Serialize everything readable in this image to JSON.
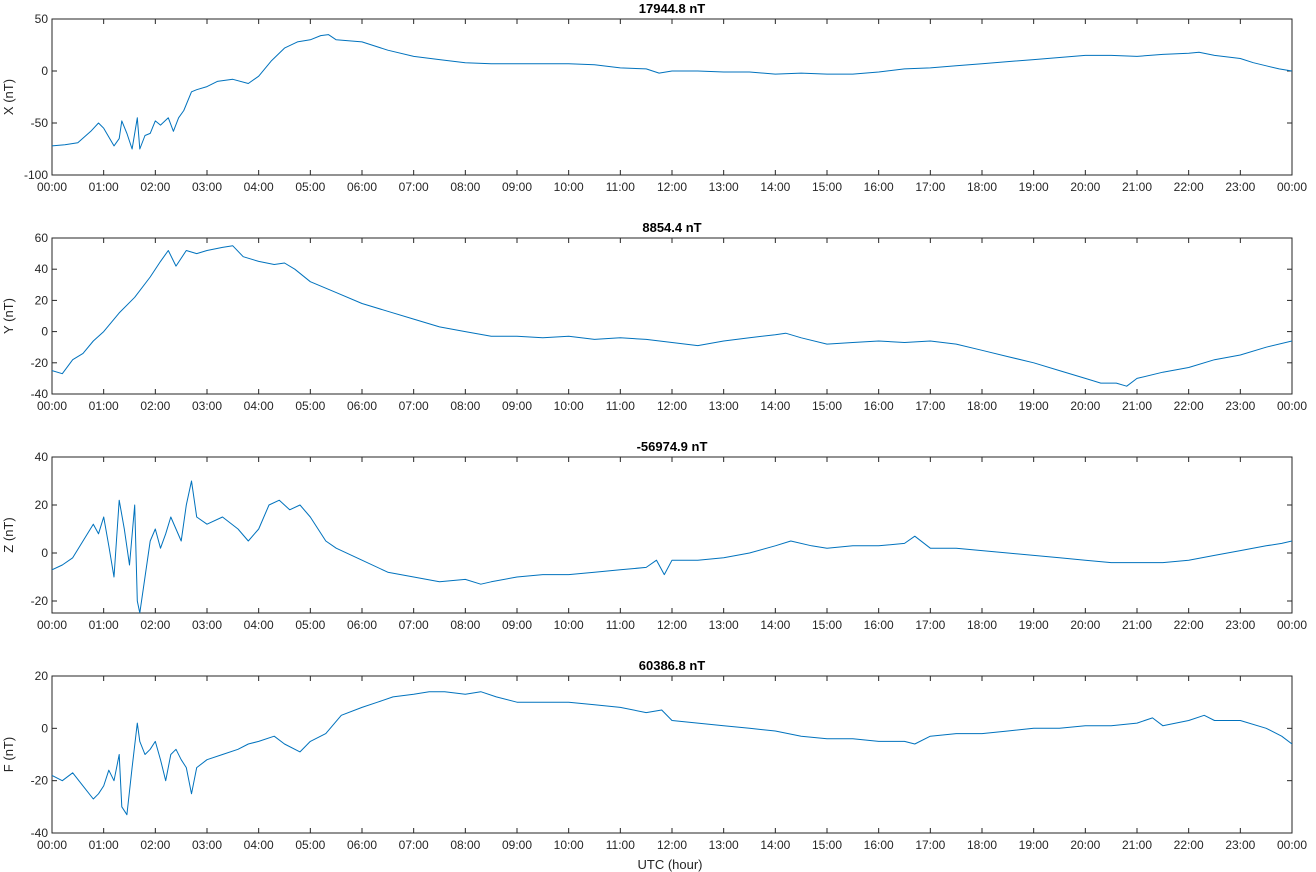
{
  "chart_data": [
    {
      "type": "line",
      "title": "17944.8 nT",
      "ylabel": "X (nT)",
      "xlabel": "",
      "ylim": [
        -100,
        50
      ],
      "yticks": [
        -100,
        -50,
        0,
        50
      ],
      "xticks": [
        "00:00",
        "01:00",
        "02:00",
        "03:00",
        "04:00",
        "05:00",
        "06:00",
        "07:00",
        "08:00",
        "09:00",
        "10:00",
        "11:00",
        "12:00",
        "13:00",
        "14:00",
        "15:00",
        "16:00",
        "17:00",
        "18:00",
        "19:00",
        "20:00",
        "21:00",
        "22:00",
        "23:00",
        "00:00"
      ],
      "xlim_hours": [
        0,
        24
      ],
      "color": "#0072BD",
      "series": [
        {
          "x": [
            0,
            0.25,
            0.5,
            0.75,
            0.9,
            1.0,
            1.2,
            1.3,
            1.35,
            1.45,
            1.55,
            1.65,
            1.7,
            1.8,
            1.9,
            2.0,
            2.1,
            2.25,
            2.35,
            2.45,
            2.55,
            2.7,
            2.8,
            3.0,
            3.2,
            3.5,
            3.8,
            4.0,
            4.25,
            4.5,
            4.75,
            5.0,
            5.2,
            5.35,
            5.5,
            6.0,
            6.5,
            7.0,
            7.5,
            8.0,
            8.5,
            9.0,
            9.5,
            10.0,
            10.5,
            11.0,
            11.5,
            11.75,
            12.0,
            12.5,
            13.0,
            13.5,
            14.0,
            14.5,
            15.0,
            15.5,
            16.0,
            16.5,
            17.0,
            17.5,
            18.0,
            18.5,
            19.0,
            19.5,
            20.0,
            20.5,
            21.0,
            21.5,
            22.0,
            22.2,
            22.5,
            23.0,
            23.25,
            23.5,
            23.75,
            24.0
          ],
          "y": [
            -72,
            -71,
            -69,
            -58,
            -50,
            -55,
            -72,
            -65,
            -48,
            -60,
            -75,
            -45,
            -75,
            -62,
            -60,
            -48,
            -52,
            -45,
            -58,
            -45,
            -38,
            -20,
            -18,
            -15,
            -10,
            -8,
            -12,
            -5,
            10,
            22,
            28,
            30,
            34,
            35,
            30,
            28,
            20,
            14,
            11,
            8,
            7,
            7,
            7,
            7,
            6,
            3,
            2,
            -2,
            0,
            0,
            -1,
            -1,
            -3,
            -2,
            -3,
            -3,
            -1,
            2,
            3,
            5,
            7,
            9,
            11,
            13,
            15,
            15,
            14,
            16,
            17,
            18,
            15,
            12,
            8,
            5,
            2,
            0
          ]
        }
      ]
    },
    {
      "type": "line",
      "title": "8854.4 nT",
      "ylabel": "Y (nT)",
      "xlabel": "",
      "ylim": [
        -40,
        60
      ],
      "yticks": [
        -40,
        -20,
        0,
        20,
        40,
        60
      ],
      "xticks": [
        "00:00",
        "01:00",
        "02:00",
        "03:00",
        "04:00",
        "05:00",
        "06:00",
        "07:00",
        "08:00",
        "09:00",
        "10:00",
        "11:00",
        "12:00",
        "13:00",
        "14:00",
        "15:00",
        "16:00",
        "17:00",
        "18:00",
        "19:00",
        "20:00",
        "21:00",
        "22:00",
        "23:00",
        "00:00"
      ],
      "xlim_hours": [
        0,
        24
      ],
      "color": "#0072BD",
      "series": [
        {
          "x": [
            0,
            0.2,
            0.4,
            0.6,
            0.8,
            1.0,
            1.3,
            1.6,
            1.9,
            2.1,
            2.25,
            2.4,
            2.6,
            2.8,
            3.0,
            3.3,
            3.5,
            3.7,
            4.0,
            4.3,
            4.5,
            4.7,
            5.0,
            5.5,
            6.0,
            6.5,
            7.0,
            7.5,
            8.0,
            8.5,
            9.0,
            9.5,
            10.0,
            10.5,
            11.0,
            11.5,
            12.0,
            12.5,
            13.0,
            13.5,
            14.0,
            14.2,
            14.5,
            15.0,
            15.5,
            16.0,
            16.5,
            17.0,
            17.5,
            18.0,
            18.5,
            19.0,
            19.5,
            20.0,
            20.3,
            20.6,
            20.8,
            21.0,
            21.5,
            22.0,
            22.5,
            23.0,
            23.5,
            24.0
          ],
          "y": [
            -25,
            -27,
            -18,
            -14,
            -6,
            0,
            12,
            22,
            35,
            45,
            52,
            42,
            52,
            50,
            52,
            54,
            55,
            48,
            45,
            43,
            44,
            40,
            32,
            25,
            18,
            13,
            8,
            3,
            0,
            -3,
            -3,
            -4,
            -3,
            -5,
            -4,
            -5,
            -7,
            -9,
            -6,
            -4,
            -2,
            -1,
            -4,
            -8,
            -7,
            -6,
            -7,
            -6,
            -8,
            -12,
            -16,
            -20,
            -25,
            -30,
            -33,
            -33,
            -35,
            -30,
            -26,
            -23,
            -18,
            -15,
            -10,
            -6
          ]
        }
      ]
    },
    {
      "type": "line",
      "title": "-56974.9 nT",
      "ylabel": "Z (nT)",
      "xlabel": "",
      "ylim": [
        -25,
        40
      ],
      "yticks": [
        -20,
        0,
        20,
        40
      ],
      "xticks": [
        "00:00",
        "01:00",
        "02:00",
        "03:00",
        "04:00",
        "05:00",
        "06:00",
        "07:00",
        "08:00",
        "09:00",
        "10:00",
        "11:00",
        "12:00",
        "13:00",
        "14:00",
        "15:00",
        "16:00",
        "17:00",
        "18:00",
        "19:00",
        "20:00",
        "21:00",
        "22:00",
        "23:00",
        "00:00"
      ],
      "xlim_hours": [
        0,
        24
      ],
      "color": "#0072BD",
      "series": [
        {
          "x": [
            0,
            0.2,
            0.4,
            0.6,
            0.8,
            0.9,
            1.0,
            1.1,
            1.2,
            1.3,
            1.4,
            1.5,
            1.6,
            1.65,
            1.7,
            1.8,
            1.9,
            2.0,
            2.1,
            2.2,
            2.3,
            2.4,
            2.5,
            2.6,
            2.7,
            2.8,
            3.0,
            3.3,
            3.6,
            3.8,
            4.0,
            4.2,
            4.4,
            4.6,
            4.8,
            5.0,
            5.3,
            5.5,
            6.0,
            6.5,
            7.0,
            7.5,
            8.0,
            8.3,
            8.5,
            9.0,
            9.5,
            10.0,
            10.5,
            11.0,
            11.5,
            11.7,
            11.85,
            12.0,
            12.5,
            13.0,
            13.5,
            14.0,
            14.3,
            14.7,
            15.0,
            15.5,
            16.0,
            16.5,
            16.7,
            17.0,
            17.5,
            18.0,
            18.5,
            19.0,
            19.5,
            20.0,
            20.5,
            21.0,
            21.5,
            22.0,
            22.5,
            23.0,
            23.5,
            23.8,
            24.0
          ],
          "y": [
            -7,
            -5,
            -2,
            5,
            12,
            8,
            15,
            3,
            -10,
            22,
            10,
            -5,
            20,
            -20,
            -25,
            -10,
            5,
            10,
            2,
            8,
            15,
            10,
            5,
            20,
            30,
            15,
            12,
            15,
            10,
            5,
            10,
            20,
            22,
            18,
            20,
            15,
            5,
            2,
            -3,
            -8,
            -10,
            -12,
            -11,
            -13,
            -12,
            -10,
            -9,
            -9,
            -8,
            -7,
            -6,
            -3,
            -9,
            -3,
            -3,
            -2,
            0,
            3,
            5,
            3,
            2,
            3,
            3,
            4,
            7,
            2,
            2,
            1,
            0,
            -1,
            -2,
            -3,
            -4,
            -4,
            -4,
            -3,
            -1,
            1,
            3,
            4,
            5
          ]
        }
      ]
    },
    {
      "type": "line",
      "title": "60386.8 nT",
      "ylabel": "F (nT)",
      "xlabel": "UTC (hour)",
      "ylim": [
        -40,
        20
      ],
      "yticks": [
        -40,
        -20,
        0,
        20
      ],
      "xticks": [
        "00:00",
        "01:00",
        "02:00",
        "03:00",
        "04:00",
        "05:00",
        "06:00",
        "07:00",
        "08:00",
        "09:00",
        "10:00",
        "11:00",
        "12:00",
        "13:00",
        "14:00",
        "15:00",
        "16:00",
        "17:00",
        "18:00",
        "19:00",
        "20:00",
        "21:00",
        "22:00",
        "23:00",
        "00:00"
      ],
      "xlim_hours": [
        0,
        24
      ],
      "color": "#0072BD",
      "series": [
        {
          "x": [
            0,
            0.2,
            0.4,
            0.6,
            0.8,
            0.9,
            1.0,
            1.1,
            1.2,
            1.3,
            1.35,
            1.45,
            1.55,
            1.65,
            1.7,
            1.8,
            1.9,
            2.0,
            2.1,
            2.2,
            2.3,
            2.4,
            2.5,
            2.6,
            2.7,
            2.8,
            3.0,
            3.3,
            3.6,
            3.8,
            4.0,
            4.3,
            4.5,
            4.8,
            5.0,
            5.3,
            5.6,
            6.0,
            6.3,
            6.6,
            7.0,
            7.3,
            7.6,
            8.0,
            8.3,
            8.6,
            9.0,
            9.5,
            10.0,
            10.5,
            11.0,
            11.5,
            11.8,
            12.0,
            12.5,
            13.0,
            13.5,
            14.0,
            14.5,
            15.0,
            15.5,
            16.0,
            16.5,
            16.7,
            17.0,
            17.5,
            18.0,
            18.5,
            19.0,
            19.5,
            20.0,
            20.5,
            21.0,
            21.3,
            21.5,
            22.0,
            22.3,
            22.5,
            23.0,
            23.5,
            23.8,
            24.0
          ],
          "y": [
            -18,
            -20,
            -17,
            -22,
            -27,
            -25,
            -22,
            -16,
            -20,
            -10,
            -30,
            -33,
            -15,
            2,
            -5,
            -10,
            -8,
            -5,
            -12,
            -20,
            -10,
            -8,
            -12,
            -15,
            -25,
            -15,
            -12,
            -10,
            -8,
            -6,
            -5,
            -3,
            -6,
            -9,
            -5,
            -2,
            5,
            8,
            10,
            12,
            13,
            14,
            14,
            13,
            14,
            12,
            10,
            10,
            10,
            9,
            8,
            6,
            7,
            3,
            2,
            1,
            0,
            -1,
            -3,
            -4,
            -4,
            -5,
            -5,
            -6,
            -3,
            -2,
            -2,
            -1,
            0,
            0,
            1,
            1,
            2,
            4,
            1,
            3,
            5,
            3,
            3,
            0,
            -3,
            -6
          ]
        }
      ]
    }
  ]
}
